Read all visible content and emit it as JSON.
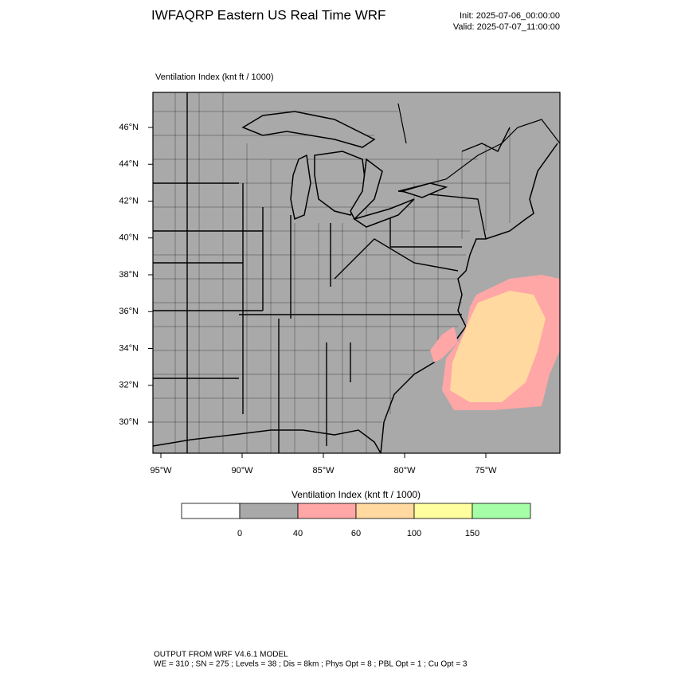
{
  "header": {
    "title": "IWFAQRP Eastern US Real Time WRF",
    "init": "Init: 2025-07-06_00:00:00",
    "valid": "Valid: 2025-07-07_11:00:00"
  },
  "map": {
    "label": "Ventilation Index   (knt ft / 1000)",
    "lat_labels": [
      "46°N",
      "44°N",
      "42°N",
      "40°N",
      "38°N",
      "36°N",
      "34°N",
      "32°N",
      "30°N"
    ],
    "lon_labels": [
      "95°W",
      "90°W",
      "85°W",
      "80°W",
      "75°W"
    ]
  },
  "colorbar": {
    "title": "Ventilation Index  (knt ft / 1000)",
    "colors": [
      "#ffffff",
      "#a9a9a9",
      "#ffa6a6",
      "#ffd9a0",
      "#ffffa0",
      "#a6ffa6"
    ],
    "ticks": [
      0,
      40,
      60,
      100,
      150
    ]
  },
  "footer": {
    "line1": "OUTPUT FROM WRF V4.6.1 MODEL",
    "line2": "WE = 310 ; SN = 275 ; Levels = 38 ; Dis = 8km ; Phys Opt = 8 ; PBL Opt = 1 ; Cu Opt = 3"
  }
}
